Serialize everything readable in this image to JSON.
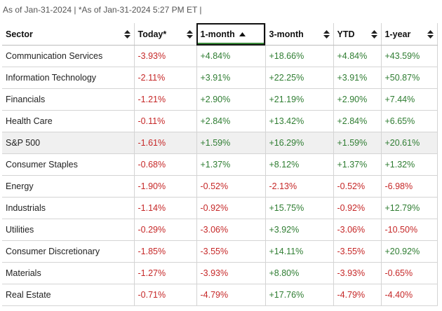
{
  "header_note": "As of Jan-31-2024 | *As of Jan-31-2024 5:27 PM ET |",
  "colors": {
    "positive": "#2f7d32",
    "negative": "#c62828",
    "sort_active": "#3a8a3a"
  },
  "columns": [
    {
      "label": "Sector",
      "sort": "both"
    },
    {
      "label": "Today*",
      "sort": "both"
    },
    {
      "label": "1-month",
      "sort": "asc",
      "active": true
    },
    {
      "label": "3-month",
      "sort": "both"
    },
    {
      "label": "YTD",
      "sort": "both"
    },
    {
      "label": "1-year",
      "sort": "both"
    }
  ],
  "rows": [
    {
      "sector": "Communication Services",
      "today": "-3.93%",
      "one_month": "+4.84%",
      "three_month": "+18.66%",
      "ytd": "+4.84%",
      "one_year": "+43.59%"
    },
    {
      "sector": "Information Technology",
      "today": "-2.11%",
      "one_month": "+3.91%",
      "three_month": "+22.25%",
      "ytd": "+3.91%",
      "one_year": "+50.87%"
    },
    {
      "sector": "Financials",
      "today": "-1.21%",
      "one_month": "+2.90%",
      "three_month": "+21.19%",
      "ytd": "+2.90%",
      "one_year": "+7.44%"
    },
    {
      "sector": "Health Care",
      "today": "-0.11%",
      "one_month": "+2.84%",
      "three_month": "+13.42%",
      "ytd": "+2.84%",
      "one_year": "+6.65%"
    },
    {
      "sector": "S&P 500",
      "today": "-1.61%",
      "one_month": "+1.59%",
      "three_month": "+16.29%",
      "ytd": "+1.59%",
      "one_year": "+20.61%",
      "highlight": true
    },
    {
      "sector": "Consumer Staples",
      "today": "-0.68%",
      "one_month": "+1.37%",
      "three_month": "+8.12%",
      "ytd": "+1.37%",
      "one_year": "+1.32%"
    },
    {
      "sector": "Energy",
      "today": "-1.90%",
      "one_month": "-0.52%",
      "three_month": "-2.13%",
      "ytd": "-0.52%",
      "one_year": "-6.98%"
    },
    {
      "sector": "Industrials",
      "today": "-1.14%",
      "one_month": "-0.92%",
      "three_month": "+15.75%",
      "ytd": "-0.92%",
      "one_year": "+12.79%"
    },
    {
      "sector": "Utilities",
      "today": "-0.29%",
      "one_month": "-3.06%",
      "three_month": "+3.92%",
      "ytd": "-3.06%",
      "one_year": "-10.50%"
    },
    {
      "sector": "Consumer Discretionary",
      "today": "-1.85%",
      "one_month": "-3.55%",
      "three_month": "+14.11%",
      "ytd": "-3.55%",
      "one_year": "+20.92%"
    },
    {
      "sector": "Materials",
      "today": "-1.27%",
      "one_month": "-3.93%",
      "three_month": "+8.80%",
      "ytd": "-3.93%",
      "one_year": "-0.65%"
    },
    {
      "sector": "Real Estate",
      "today": "-0.71%",
      "one_month": "-4.79%",
      "three_month": "+17.76%",
      "ytd": "-4.79%",
      "one_year": "-4.40%"
    }
  ]
}
